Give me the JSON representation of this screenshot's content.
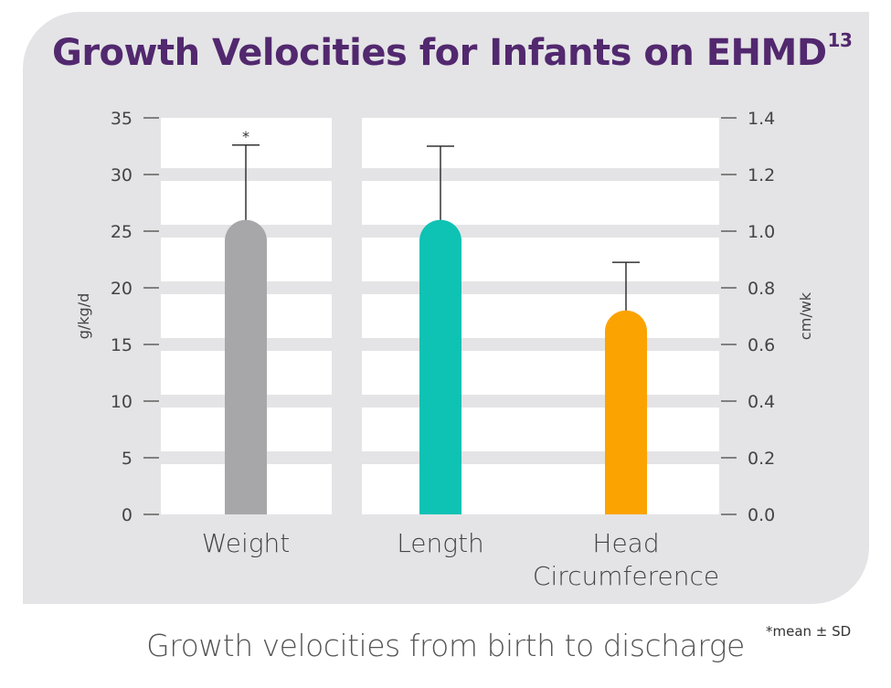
{
  "title": "Growth Velocities for Infants on EHMD",
  "title_superscript": "13",
  "caption": "Growth velocities from birth to discharge",
  "footnote": "*mean ± SD",
  "colors": {
    "panel": "#e4e4e6",
    "title": "#52286e",
    "weight": "#a7a7aa",
    "length": "#0ec2b4",
    "head_circumference": "#fba300"
  },
  "chart_data": {
    "type": "bar",
    "title": "Growth Velocities for Infants on EHMD",
    "categories": [
      "Weight",
      "Length",
      "Head Circumference"
    ],
    "category_lines": [
      [
        "Weight"
      ],
      [
        "Length"
      ],
      [
        "Head",
        "Circumference"
      ]
    ],
    "ylabel_left": "g/kg/d",
    "ylabel_right": "cm/wk",
    "ylim_left": [
      0,
      35
    ],
    "ylim_right": [
      0,
      1.4
    ],
    "yticks_left": [
      "0",
      "5",
      "10",
      "15",
      "20",
      "25",
      "30",
      "35"
    ],
    "yticks_right": [
      "0.0",
      "0.2",
      "0.4",
      "0.6",
      "0.8",
      "1.0",
      "1.2",
      "1.4"
    ],
    "bars": [
      {
        "category": "Weight",
        "axis": "left",
        "value": 26,
        "sd": 6.6,
        "marker": "*",
        "color": "#a7a7aa"
      },
      {
        "category": "Length",
        "axis": "right",
        "value": 1.04,
        "sd": 0.26,
        "marker": "",
        "color": "#0ec2b4"
      },
      {
        "category": "Head Circumference",
        "axis": "right",
        "value": 0.72,
        "sd": 0.17,
        "marker": "",
        "color": "#fba300"
      }
    ],
    "error_bars": "mean ± SD",
    "grid": true
  }
}
